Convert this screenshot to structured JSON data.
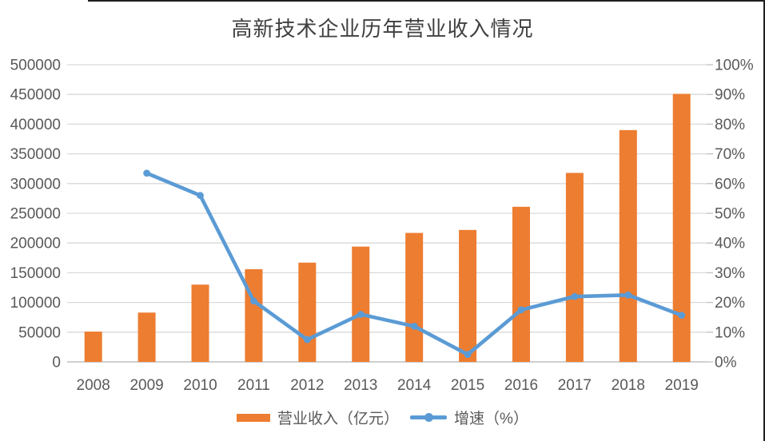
{
  "chart_data": {
    "type": "combo-bar-line",
    "title": "高新技术企业历年营业收入情况",
    "categories": [
      "2008",
      "2009",
      "2010",
      "2011",
      "2012",
      "2013",
      "2014",
      "2015",
      "2016",
      "2017",
      "2018",
      "2019"
    ],
    "series": [
      {
        "name": "营业收入（亿元）",
        "type": "bar",
        "axis": "left",
        "values": [
          51000,
          83000,
          130000,
          156000,
          167000,
          194000,
          217000,
          222000,
          261000,
          318000,
          390000,
          451000
        ]
      },
      {
        "name": "增速（%）",
        "type": "line",
        "axis": "right",
        "values": [
          null,
          63.5,
          56.0,
          20.5,
          7.5,
          16.0,
          12.0,
          2.5,
          17.5,
          22.0,
          22.5,
          15.7
        ]
      }
    ],
    "left_axis": {
      "min": 0,
      "max": 500000,
      "step": 50000,
      "tick_labels": [
        "0",
        "50000",
        "100000",
        "150000",
        "200000",
        "250000",
        "300000",
        "350000",
        "400000",
        "450000",
        "500000"
      ]
    },
    "right_axis": {
      "min": 0,
      "max": 100,
      "step": 10,
      "tick_labels": [
        "0%",
        "10%",
        "20%",
        "30%",
        "40%",
        "50%",
        "60%",
        "70%",
        "80%",
        "90%",
        "100%"
      ]
    },
    "grid": true,
    "legend_position": "bottom",
    "colors": {
      "bar": "#ED7D31",
      "line": "#5B9BD5",
      "gridline": "#D9D9D9",
      "axis_line": "#BFBFBF",
      "tick_label": "#595959",
      "title": "#404040",
      "frame_border": "#1f1f1f"
    }
  },
  "legend": {
    "bar_label": "营业收入（亿元）",
    "line_label": "增速（%）"
  }
}
